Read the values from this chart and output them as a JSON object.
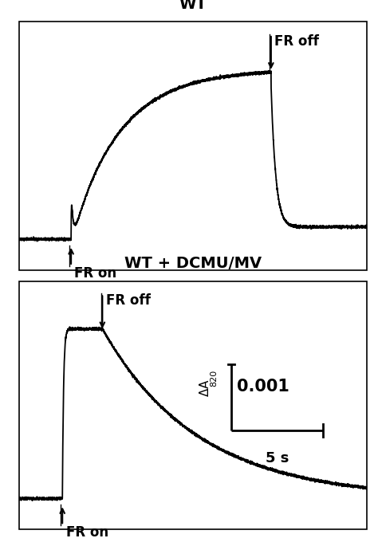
{
  "title_top": "WT",
  "title_bottom": "WT + DCMU/MV",
  "fr_on_label": "FR on",
  "fr_off_label": "FR off",
  "scale_label_y": "0.001",
  "scale_label_x": "5 s",
  "bg_color": "#ffffff",
  "line_color": "#000000",
  "border_color": "#000000",
  "title_fontsize": 14,
  "label_fontsize": 12,
  "scale_fontsize": 14,
  "panel1": {
    "fr_on_t": 3.0,
    "fr_off_t": 14.5,
    "total_t": 20.0,
    "spike_amp": 0.28,
    "spike_decay": 8.0,
    "dip_amp": 0.07,
    "dip_decay": 2.5,
    "plateau": 0.82,
    "rise_tau": 2.8,
    "drop_fast": 3.5,
    "post_drop_level": 0.06,
    "post_decay": 2.5
  },
  "panel2": {
    "fr_on_t": 2.5,
    "fr_off_t": 4.8,
    "total_t": 20.0,
    "plateau": 0.82,
    "rise_rate": 15.0,
    "decay_tau": 5.5
  }
}
